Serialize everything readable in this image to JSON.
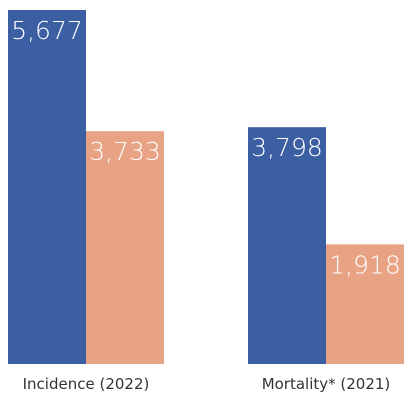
{
  "chart_data": {
    "type": "bar",
    "categories": [
      "Incidence (2022)",
      "Mortality* (2021)"
    ],
    "series": [
      {
        "values": [
          5677,
          3798
        ],
        "color": "#3C5FA3"
      },
      {
        "values": [
          3733,
          1918
        ],
        "color": "#E8A284"
      }
    ],
    "data_labels": [
      [
        "5,677",
        "3,798"
      ],
      [
        "3,733",
        "1,918"
      ]
    ],
    "title": "",
    "xlabel": "",
    "ylabel": "",
    "ylim": [
      0,
      5677
    ],
    "grid": false,
    "legend": "none"
  }
}
